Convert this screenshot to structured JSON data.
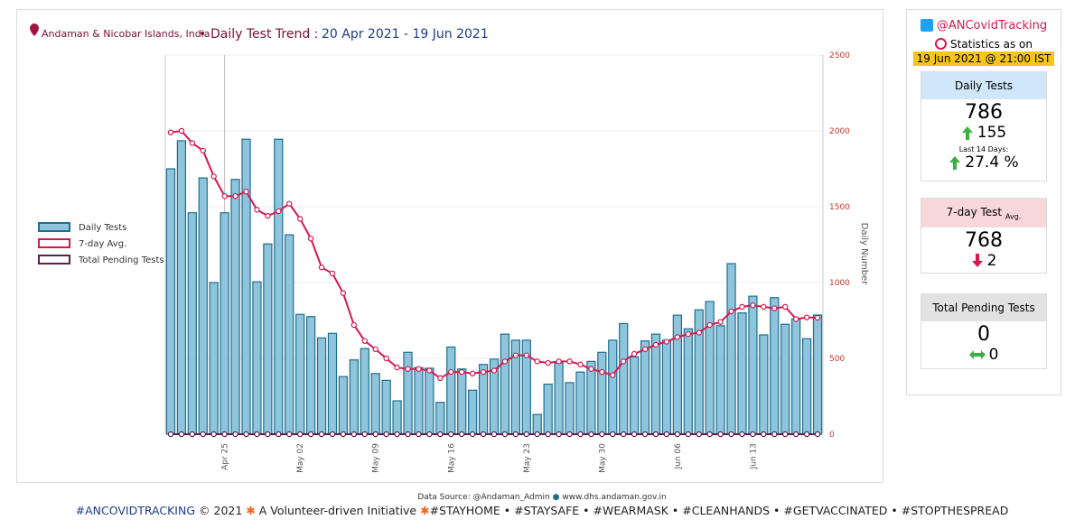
{
  "chart_data": {
    "type": "bar",
    "location": "Andaman & Nicobar Islands, India",
    "title": "Daily Test Trend :",
    "date_range": "20 Apr 2021 - 19 Jun 2021",
    "y_label": "Daily Number",
    "categories": [
      null,
      null,
      null,
      null,
      null,
      "Apr 25",
      null,
      null,
      null,
      null,
      null,
      null,
      "May 02",
      null,
      null,
      null,
      null,
      null,
      null,
      "May 09",
      null,
      null,
      null,
      null,
      null,
      null,
      "May 16",
      null,
      null,
      null,
      null,
      null,
      null,
      "May 23",
      null,
      null,
      null,
      null,
      null,
      null,
      "May 30",
      null,
      null,
      null,
      null,
      null,
      null,
      "Jun 06",
      null,
      null,
      null,
      null,
      null,
      null,
      "Jun 13",
      null,
      null,
      null,
      null,
      null,
      null
    ],
    "series": [
      {
        "name": "Daily Tests",
        "type": "bar",
        "color": "#8ec5dc",
        "values": [
          1750,
          1935,
          1460,
          1690,
          1000,
          1460,
          1680,
          1945,
          1005,
          1255,
          1945,
          1315,
          790,
          775,
          635,
          665,
          380,
          490,
          565,
          400,
          355,
          220,
          540,
          440,
          435,
          210,
          575,
          430,
          290,
          460,
          495,
          660,
          620,
          620,
          130,
          330,
          470,
          340,
          410,
          480,
          540,
          620,
          730,
          510,
          615,
          660,
          620,
          785,
          695,
          820,
          875,
          715,
          1125,
          800,
          910,
          655,
          900,
          725,
          760,
          630,
          786
        ]
      },
      {
        "name": "7-day Avg.",
        "type": "line",
        "color": "#d6184f",
        "values": [
          1990,
          2000,
          1920,
          1870,
          1700,
          1570,
          1570,
          1600,
          1480,
          1440,
          1470,
          1520,
          1420,
          1290,
          1100,
          1060,
          930,
          720,
          615,
          560,
          500,
          440,
          430,
          430,
          420,
          370,
          410,
          410,
          400,
          410,
          420,
          480,
          520,
          520,
          480,
          470,
          480,
          480,
          460,
          430,
          410,
          390,
          480,
          530,
          560,
          590,
          610,
          640,
          660,
          670,
          720,
          740,
          810,
          840,
          850,
          840,
          830,
          840,
          760,
          770,
          768
        ]
      },
      {
        "name": "Total Pending Tests",
        "type": "line",
        "color": "#5a1f4f",
        "values": [
          0,
          0,
          0,
          0,
          0,
          0,
          0,
          0,
          0,
          0,
          0,
          0,
          0,
          0,
          0,
          0,
          0,
          0,
          0,
          0,
          0,
          0,
          0,
          0,
          0,
          0,
          0,
          0,
          0,
          0,
          0,
          0,
          0,
          0,
          0,
          0,
          0,
          0,
          0,
          0,
          0,
          0,
          0,
          0,
          0,
          0,
          0,
          0,
          0,
          0,
          0,
          0,
          0,
          0,
          0,
          0,
          0,
          0,
          0,
          0,
          0
        ]
      }
    ],
    "ylim": [
      0,
      2500
    ],
    "yticks": [
      0,
      500,
      1000,
      1500,
      2000,
      2500
    ]
  },
  "sidebar": {
    "handle": "@ANCovidTracking",
    "stats_label": "Statistics as on",
    "stats_time": "19 Jun 2021 @ 21:00 IST",
    "daily": {
      "title": "Daily Tests",
      "value": 786,
      "change": 155,
      "last14_label": "Last 14 Days:",
      "last14": "27.4 %"
    },
    "avg": {
      "title": "7-day Test",
      "title_sub": "Avg.",
      "value": 768,
      "change": 2
    },
    "pending": {
      "title": "Total Pending Tests",
      "value": 0,
      "change": 0
    }
  },
  "footer": {
    "source_label": "Data Source:",
    "source1": "@Andaman_Admin",
    "source2": "www.dhs.andaman.gov.in",
    "brand": "#ANCOVIDTRACKING",
    "copyright": "© 2021",
    "initiative": "A Volunteer-driven Initiative",
    "tags": "#STAYHOME • #STAYSAFE • #WEARMASK • #CLEANHANDS • #GETVACCINATED • #STOPTHESPREAD"
  }
}
